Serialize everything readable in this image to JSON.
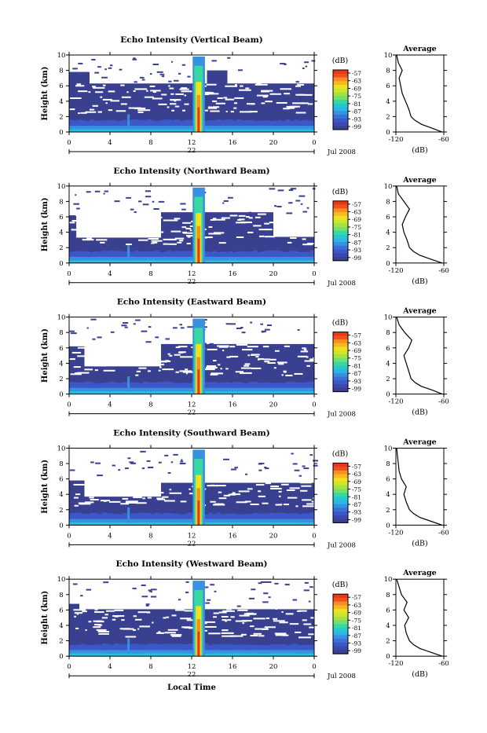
{
  "chart_data": [
    {
      "type": "heatmap",
      "title": "Echo Intensity (Vertical Beam)",
      "ylabel": "Height (km)",
      "xticks": [
        "0",
        "4",
        "8",
        "12",
        "16",
        "20",
        "0"
      ],
      "date_day": "22",
      "date_month_year": "Jul 2008",
      "ylim": [
        0,
        10
      ],
      "yticks": [
        "0",
        "2",
        "4",
        "6",
        "8",
        "10"
      ],
      "colorbar": {
        "unit": "(dB)",
        "levels": [
          "-57",
          "-63",
          "-69",
          "-75",
          "-81",
          "-87",
          "-93",
          "-99"
        ]
      },
      "average": {
        "title": "Average",
        "xlabel": "(dB)",
        "xticks": [
          "-120",
          "-60"
        ],
        "yticks": [
          "0",
          "2",
          "4",
          "6",
          "8",
          "10"
        ],
        "profile": [
          [
            -62,
            0
          ],
          [
            -75,
            0.5
          ],
          [
            -88,
            1
          ],
          [
            -96,
            1.5
          ],
          [
            -101,
            2
          ],
          [
            -104,
            3
          ],
          [
            -108,
            4
          ],
          [
            -112,
            5
          ],
          [
            -114,
            6
          ],
          [
            -116,
            7
          ],
          [
            -112,
            8
          ],
          [
            -117,
            9
          ],
          [
            -119,
            10
          ]
        ]
      },
      "fill": [
        {
          "x0": 0,
          "x1": 24,
          "h": 6.3
        },
        {
          "x0": 0,
          "x1": 2,
          "h": 7.8
        },
        {
          "x0": 13.5,
          "x1": 15.5,
          "h": 8
        }
      ]
    },
    {
      "type": "heatmap",
      "title": "Echo Intensity (Northward Beam)",
      "ylabel": "Height (km)",
      "xticks": [
        "0",
        "4",
        "8",
        "12",
        "16",
        "20",
        "0"
      ],
      "date_day": "22",
      "date_month_year": "Jul 2008",
      "ylim": [
        0,
        10
      ],
      "yticks": [
        "0",
        "2",
        "4",
        "6",
        "8",
        "10"
      ],
      "colorbar": {
        "unit": "(dB)",
        "levels": [
          "-57",
          "-63",
          "-69",
          "-75",
          "-81",
          "-87",
          "-93",
          "-99"
        ]
      },
      "average": {
        "title": "Average",
        "xlabel": "(dB)",
        "xticks": [
          "-120",
          "-60"
        ],
        "yticks": [
          "0",
          "2",
          "4",
          "6",
          "8",
          "10"
        ],
        "profile": [
          [
            -62,
            0
          ],
          [
            -76,
            0.5
          ],
          [
            -90,
            1
          ],
          [
            -98,
            1.5
          ],
          [
            -103,
            2
          ],
          [
            -106,
            3
          ],
          [
            -110,
            4
          ],
          [
            -112,
            5
          ],
          [
            -108,
            6
          ],
          [
            -103,
            7
          ],
          [
            -110,
            8
          ],
          [
            -117,
            9
          ],
          [
            -119,
            10
          ]
        ]
      },
      "fill": [
        {
          "x0": 0,
          "x1": 9,
          "h": 3.3
        },
        {
          "x0": 0,
          "x1": 0.7,
          "h": 6.2
        },
        {
          "x0": 9,
          "x1": 20,
          "h": 6.6
        },
        {
          "x0": 20,
          "x1": 24,
          "h": 3.4
        }
      ]
    },
    {
      "type": "heatmap",
      "title": "Echo Intensity (Eastward Beam)",
      "ylabel": "Height (km)",
      "xticks": [
        "0",
        "4",
        "8",
        "12",
        "16",
        "20",
        "0"
      ],
      "date_day": "22",
      "date_month_year": "Jul 2008",
      "ylim": [
        0,
        10
      ],
      "yticks": [
        "0",
        "2",
        "4",
        "6",
        "8",
        "10"
      ],
      "colorbar": {
        "unit": "(dB)",
        "levels": [
          "-57",
          "-63",
          "-69",
          "-75",
          "-81",
          "-87",
          "-93",
          "-99"
        ]
      },
      "average": {
        "title": "Average",
        "xlabel": "(dB)",
        "xticks": [
          "-120",
          "-60"
        ],
        "yticks": [
          "0",
          "2",
          "4",
          "6",
          "8",
          "10"
        ],
        "profile": [
          [
            -62,
            0
          ],
          [
            -74,
            0.5
          ],
          [
            -88,
            1
          ],
          [
            -96,
            1.5
          ],
          [
            -101,
            2
          ],
          [
            -104,
            3
          ],
          [
            -107,
            4
          ],
          [
            -110,
            5
          ],
          [
            -104,
            6
          ],
          [
            -100,
            7
          ],
          [
            -109,
            8
          ],
          [
            -116,
            9
          ],
          [
            -119,
            10
          ]
        ]
      },
      "fill": [
        {
          "x0": 0,
          "x1": 9,
          "h": 3.6
        },
        {
          "x0": 0,
          "x1": 1.5,
          "h": 6.2
        },
        {
          "x0": 9,
          "x1": 24,
          "h": 6.5
        }
      ]
    },
    {
      "type": "heatmap",
      "title": "Echo Intensity (Southward Beam)",
      "ylabel": "Height (km)",
      "xticks": [
        "0",
        "4",
        "8",
        "12",
        "16",
        "20",
        "0"
      ],
      "date_day": "22",
      "date_month_year": "Jul 2008",
      "ylim": [
        0,
        10
      ],
      "yticks": [
        "0",
        "2",
        "4",
        "6",
        "8",
        "10"
      ],
      "colorbar": {
        "unit": "(dB)",
        "levels": [
          "-57",
          "-63",
          "-69",
          "-75",
          "-81",
          "-87",
          "-93",
          "-99"
        ]
      },
      "average": {
        "title": "Average",
        "xlabel": "(dB)",
        "xticks": [
          "-120",
          "-60"
        ],
        "yticks": [
          "0",
          "2",
          "4",
          "6",
          "8",
          "10"
        ],
        "profile": [
          [
            -62,
            0
          ],
          [
            -76,
            0.5
          ],
          [
            -90,
            1
          ],
          [
            -98,
            1.5
          ],
          [
            -103,
            2
          ],
          [
            -107,
            3
          ],
          [
            -110,
            4
          ],
          [
            -107,
            5
          ],
          [
            -113,
            6
          ],
          [
            -116,
            7
          ],
          [
            -117,
            8
          ],
          [
            -118,
            9
          ],
          [
            -119,
            10
          ]
        ]
      },
      "fill": [
        {
          "x0": 0,
          "x1": 24,
          "h": 3.7
        },
        {
          "x0": 9,
          "x1": 24,
          "h": 5.5
        },
        {
          "x0": 0,
          "x1": 1.5,
          "h": 5.8
        }
      ]
    },
    {
      "type": "heatmap",
      "title": "Echo Intensity (Westward Beam)",
      "ylabel": "Height (km)",
      "xticks": [
        "0",
        "4",
        "8",
        "12",
        "16",
        "20",
        "0"
      ],
      "date_day": "22",
      "date_month_year": "Jul 2008",
      "ylim": [
        0,
        10
      ],
      "yticks": [
        "0",
        "2",
        "4",
        "6",
        "8",
        "10"
      ],
      "colorbar": {
        "unit": "(dB)",
        "levels": [
          "-57",
          "-63",
          "-69",
          "-75",
          "-81",
          "-87",
          "-93",
          "-99"
        ]
      },
      "average": {
        "title": "Average",
        "xlabel": "(dB)",
        "xticks": [
          "-120",
          "-60"
        ],
        "yticks": [
          "0",
          "2",
          "4",
          "6",
          "8",
          "10"
        ],
        "profile": [
          [
            -62,
            0
          ],
          [
            -76,
            0.5
          ],
          [
            -90,
            1
          ],
          [
            -98,
            1.5
          ],
          [
            -103,
            2
          ],
          [
            -107,
            3
          ],
          [
            -109,
            4
          ],
          [
            -104,
            5
          ],
          [
            -110,
            6
          ],
          [
            -106,
            7
          ],
          [
            -113,
            8
          ],
          [
            -116,
            9
          ],
          [
            -119,
            10
          ]
        ]
      },
      "fill": [
        {
          "x0": 0,
          "x1": 24,
          "h": 6.1
        },
        {
          "x0": 0,
          "x1": 1,
          "h": 6.8
        }
      ]
    }
  ],
  "footer": {
    "xlabel": "Local Time"
  },
  "colors": {
    "palette": [
      "#3a4090",
      "#3c58c8",
      "#3890e0",
      "#28c0e0",
      "#38d8a0",
      "#a8e040",
      "#f0e020",
      "#f89020",
      "#e83818"
    ]
  }
}
